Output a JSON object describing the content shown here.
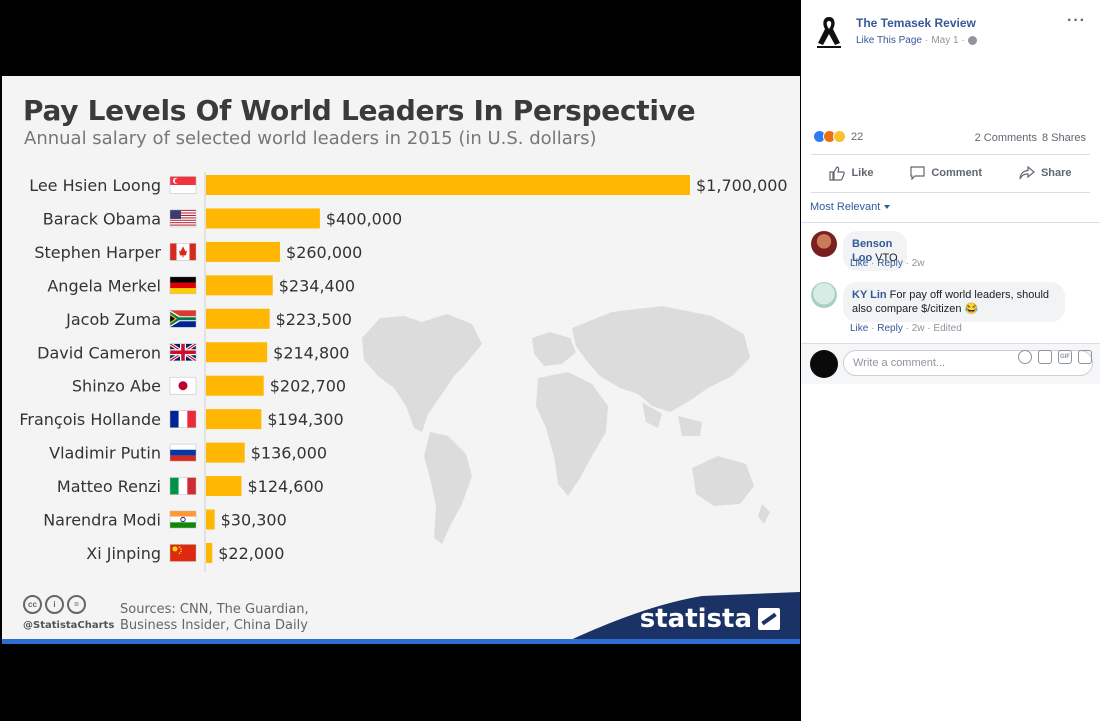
{
  "chart_data": {
    "type": "bar",
    "orientation": "horizontal",
    "title": "Pay Levels Of World Leaders In Perspective",
    "subtitle": "Annual salary of selected world leaders in 2015 (in U.S. dollars)",
    "categories": [
      "Lee Hsien Loong",
      "Barack Obama",
      "Stephen Harper",
      "Angela Merkel",
      "Jacob Zuma",
      "David Cameron",
      "Shinzo Abe",
      "François Hollande",
      "Vladimir Putin",
      "Matteo Renzi",
      "Narendra Modi",
      "Xi Jinping"
    ],
    "flags": [
      "singapore",
      "usa",
      "canada",
      "germany",
      "south-africa",
      "uk",
      "japan",
      "france",
      "russia",
      "italy",
      "india",
      "china"
    ],
    "values": [
      1700000,
      400000,
      260000,
      234400,
      223500,
      214800,
      202700,
      194300,
      136000,
      124600,
      30300,
      22000
    ],
    "data_labels": [
      "$1,700,000",
      "$400,000",
      "$260,000",
      "$234,400",
      "$223,500",
      "$214,800",
      "$202,700",
      "$194,300",
      "$136,000",
      "$124,600",
      "$30,300",
      "$22,000"
    ],
    "xlim": [
      0,
      1700000
    ],
    "grid": false,
    "bar_color": "#ffb703",
    "sources": [
      "Sources: CNN, The Guardian,",
      "Business Insider, China Daily"
    ],
    "handle": "@StatistaCharts",
    "brand": "statista",
    "brand_color": "#1b3266"
  },
  "post": {
    "page_name": "The Temasek Review",
    "like_page": "Like This Page",
    "date": "May 1",
    "separator": "·",
    "reaction_count": "22",
    "comments_count": "2 Comments",
    "shares_count": "8 Shares",
    "actions": {
      "like": "Like",
      "comment": "Comment",
      "share": "Share"
    },
    "sort_label": "Most Relevant",
    "composer_placeholder": "Write a comment..."
  },
  "comments": [
    {
      "author": "Benson Loo",
      "text": "VTO",
      "like": "Like",
      "reply": "Reply",
      "time": "2w",
      "edited": ""
    },
    {
      "author": "KY Lin",
      "text": "For pay off world leaders, should also compare $/citizen 😂",
      "like": "Like",
      "reply": "Reply",
      "time": "2w",
      "edited": "Edited"
    }
  ],
  "colors": {
    "fb_link": "#365899",
    "muted": "#90949c"
  }
}
